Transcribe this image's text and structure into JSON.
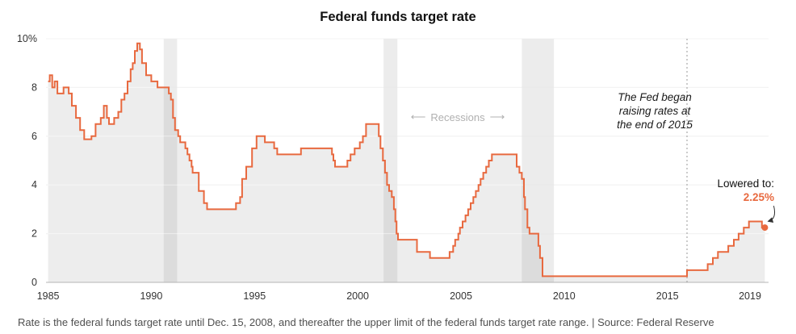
{
  "title": "Federal funds target rate",
  "footer": "Rate is the federal funds target rate until Dec. 15, 2008, and thereafter the upper limit of the federal funds target rate range. | Source: Federal Reserve",
  "annotations": {
    "recessions": {
      "left_arrow": "⟵",
      "label": "Recessions",
      "right_arrow": "⟶"
    },
    "fed_note": "The Fed began\nraising rates at\nthe end of 2015",
    "lowered": {
      "label": "Lowered to:",
      "value": "2.25%"
    }
  },
  "colors": {
    "line": "#e8693f",
    "accent": "#e8693f",
    "area": "#ededed",
    "band": "rgba(110,110,110,0.13)",
    "grid": "#e4e4e4",
    "grid_overlay": "rgba(255,255,255,0.55)",
    "baseline": "#b5b5b5",
    "dashed": "#999999",
    "arrow": "#333333",
    "tick_text": "#333333"
  },
  "chart_data": {
    "type": "line",
    "title": "Federal funds target rate",
    "step": true,
    "xlim": [
      1984.9,
      2019.9
    ],
    "ylim": [
      0,
      10
    ],
    "x_ticks": [
      1985,
      1990,
      1995,
      2000,
      2005,
      2010,
      2015,
      2019
    ],
    "y_ticks": [
      0,
      2,
      4,
      6,
      8,
      10
    ],
    "y_tick_labels": [
      "0",
      "2",
      "4",
      "6",
      "8",
      "10%"
    ],
    "grid": true,
    "legend": "none",
    "recession_bands": [
      [
        1990.6,
        1991.25
      ],
      [
        2001.25,
        2001.92
      ],
      [
        2007.95,
        2009.5
      ]
    ],
    "dashed_line_x": 2015.95,
    "end_point": [
      2019.72,
      2.25
    ],
    "series": [
      {
        "name": "Federal funds target rate (%, upper limit after Dec. 15, 2008)",
        "points": [
          [
            1985.0,
            8.25
          ],
          [
            1985.08,
            8.5
          ],
          [
            1985.2,
            8.0
          ],
          [
            1985.32,
            8.25
          ],
          [
            1985.45,
            7.75
          ],
          [
            1985.6,
            7.75
          ],
          [
            1985.75,
            8.0
          ],
          [
            1986.0,
            7.75
          ],
          [
            1986.15,
            7.25
          ],
          [
            1986.35,
            6.75
          ],
          [
            1986.55,
            6.25
          ],
          [
            1986.75,
            5.875
          ],
          [
            1987.1,
            6.0
          ],
          [
            1987.3,
            6.5
          ],
          [
            1987.55,
            6.75
          ],
          [
            1987.7,
            7.25
          ],
          [
            1987.85,
            6.75
          ],
          [
            1987.95,
            6.5
          ],
          [
            1988.2,
            6.75
          ],
          [
            1988.4,
            7.0
          ],
          [
            1988.55,
            7.5
          ],
          [
            1988.7,
            7.75
          ],
          [
            1988.85,
            8.25
          ],
          [
            1989.0,
            8.75
          ],
          [
            1989.1,
            9.0
          ],
          [
            1989.2,
            9.5
          ],
          [
            1989.32,
            9.8125
          ],
          [
            1989.45,
            9.5625
          ],
          [
            1989.55,
            9.0
          ],
          [
            1989.75,
            8.5
          ],
          [
            1990.0,
            8.25
          ],
          [
            1990.3,
            8.0
          ],
          [
            1990.85,
            7.75
          ],
          [
            1990.95,
            7.5
          ],
          [
            1991.05,
            6.75
          ],
          [
            1991.15,
            6.25
          ],
          [
            1991.3,
            6.0
          ],
          [
            1991.4,
            5.75
          ],
          [
            1991.65,
            5.5
          ],
          [
            1991.75,
            5.25
          ],
          [
            1991.85,
            5.0
          ],
          [
            1991.95,
            4.75
          ],
          [
            1992.0,
            4.5
          ],
          [
            1992.3,
            3.75
          ],
          [
            1992.55,
            3.25
          ],
          [
            1992.7,
            3.0
          ],
          [
            1994.1,
            3.25
          ],
          [
            1994.3,
            3.5
          ],
          [
            1994.4,
            4.25
          ],
          [
            1994.6,
            4.75
          ],
          [
            1994.88,
            5.5
          ],
          [
            1995.1,
            6.0
          ],
          [
            1995.5,
            5.75
          ],
          [
            1995.95,
            5.5
          ],
          [
            1996.1,
            5.25
          ],
          [
            1997.25,
            5.5
          ],
          [
            1998.75,
            5.25
          ],
          [
            1998.82,
            5.0
          ],
          [
            1998.9,
            4.75
          ],
          [
            1999.5,
            5.0
          ],
          [
            1999.65,
            5.25
          ],
          [
            1999.85,
            5.5
          ],
          [
            2000.1,
            5.75
          ],
          [
            2000.25,
            6.0
          ],
          [
            2000.4,
            6.5
          ],
          [
            2001.02,
            6.0
          ],
          [
            2001.1,
            5.5
          ],
          [
            2001.22,
            5.0
          ],
          [
            2001.32,
            4.5
          ],
          [
            2001.42,
            4.0
          ],
          [
            2001.52,
            3.75
          ],
          [
            2001.65,
            3.5
          ],
          [
            2001.75,
            3.0
          ],
          [
            2001.82,
            2.5
          ],
          [
            2001.88,
            2.0
          ],
          [
            2001.95,
            1.75
          ],
          [
            2002.87,
            1.25
          ],
          [
            2003.5,
            1.0
          ],
          [
            2004.45,
            1.25
          ],
          [
            2004.62,
            1.5
          ],
          [
            2004.72,
            1.75
          ],
          [
            2004.87,
            2.0
          ],
          [
            2004.95,
            2.25
          ],
          [
            2005.08,
            2.5
          ],
          [
            2005.22,
            2.75
          ],
          [
            2005.35,
            3.0
          ],
          [
            2005.47,
            3.25
          ],
          [
            2005.6,
            3.5
          ],
          [
            2005.72,
            3.75
          ],
          [
            2005.85,
            4.0
          ],
          [
            2005.95,
            4.25
          ],
          [
            2006.08,
            4.5
          ],
          [
            2006.22,
            4.75
          ],
          [
            2006.35,
            5.0
          ],
          [
            2006.5,
            5.25
          ],
          [
            2007.7,
            4.75
          ],
          [
            2007.83,
            4.5
          ],
          [
            2007.95,
            4.25
          ],
          [
            2008.05,
            3.5
          ],
          [
            2008.1,
            3.0
          ],
          [
            2008.22,
            2.25
          ],
          [
            2008.32,
            2.0
          ],
          [
            2008.75,
            1.5
          ],
          [
            2008.83,
            1.0
          ],
          [
            2008.95,
            0.25
          ],
          [
            2015.95,
            0.5
          ],
          [
            2016.95,
            0.75
          ],
          [
            2017.2,
            1.0
          ],
          [
            2017.45,
            1.25
          ],
          [
            2017.95,
            1.5
          ],
          [
            2018.22,
            1.75
          ],
          [
            2018.45,
            2.0
          ],
          [
            2018.7,
            2.25
          ],
          [
            2018.95,
            2.5
          ],
          [
            2019.58,
            2.25
          ],
          [
            2019.72,
            2.25
          ]
        ]
      }
    ]
  }
}
